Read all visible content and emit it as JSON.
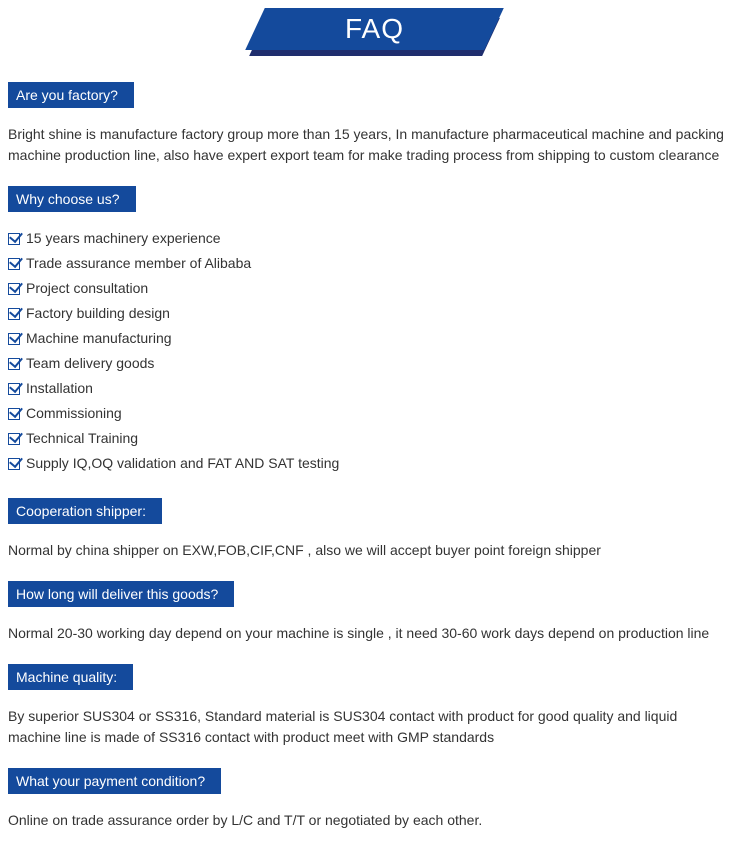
{
  "colors": {
    "primary": "#144a9c",
    "primary_dark": "#1f2e6e",
    "text": "#333333",
    "background": "#ffffff"
  },
  "banner": {
    "label": "FAQ"
  },
  "sections": {
    "factory": {
      "header": "Are you factory?",
      "body": "Bright shine is manufacture factory group more than 15 years, In manufacture pharmaceutical machine and packing machine production line, also have expert export team for make trading process from shipping to custom clearance"
    },
    "why": {
      "header": "Why choose us?",
      "items": [
        "15 years machinery experience",
        "Trade assurance member of Alibaba",
        "Project consultation",
        "Factory building design",
        "Machine manufacturing",
        "Team delivery goods",
        "Installation",
        "Commissioning",
        "Technical Training",
        "Supply IQ,OQ validation and FAT AND SAT testing"
      ]
    },
    "shipper": {
      "header": "Cooperation shipper:",
      "body": "Normal by china shipper on EXW,FOB,CIF,CNF , also we will accept buyer point foreign shipper"
    },
    "delivery": {
      "header": "How long will deliver this goods?",
      "body": "Normal 20-30 working day depend on your machine is single , it need 30-60 work days depend on production line"
    },
    "quality": {
      "header": "Machine quality:",
      "body": "By superior SUS304 or SS316, Standard material is SUS304 contact with product for good quality and  liquid machine line is made of SS316 contact with product meet with GMP standards"
    },
    "payment": {
      "header": "What your payment condition?",
      "body": "Online on trade assurance order by L/C and T/T or negotiated by each other."
    }
  }
}
